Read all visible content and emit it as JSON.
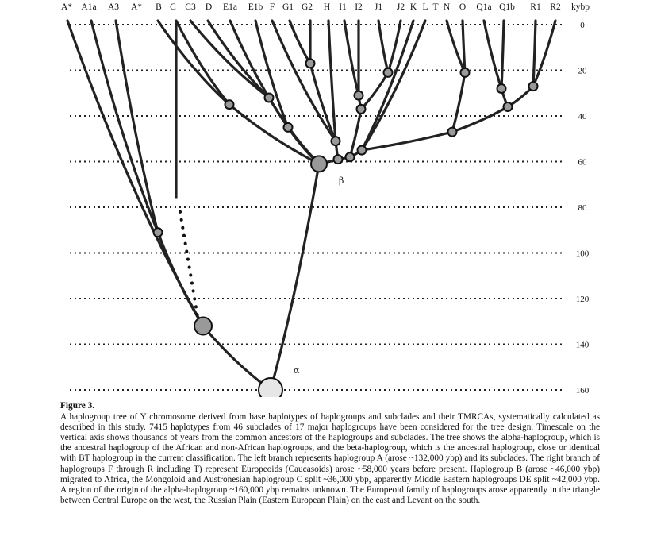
{
  "figure": {
    "axis_unit": "kybp",
    "time_ticks": [
      0,
      20,
      40,
      60,
      80,
      100,
      120,
      140,
      160
    ],
    "haplogroups": [
      "A*",
      "A1a",
      "A3",
      "A*",
      "B",
      "C",
      "C3",
      "D",
      "E1a",
      "E1b",
      "F",
      "G1",
      "G2",
      "H",
      "I1",
      "I2",
      "J1",
      "J2",
      "K",
      "L",
      "T",
      "N",
      "O",
      "Q1a",
      "Q1b",
      "R1",
      "R2"
    ],
    "alpha_label": "α",
    "beta_label": "β",
    "nodes": [
      {
        "name": "alpha",
        "kybp": 160
      },
      {
        "name": "left-branch",
        "kybp": 132
      },
      {
        "name": "beta",
        "kybp": 60
      }
    ]
  },
  "caption": {
    "title": "Figure 3.",
    "text": "A haplogroup tree of Y chromosome derived from base haplotypes of haplogroups and subclades and their TMRCAs, systematically calculated as described in this study. 7415 haplotypes from 46 subclades of 17 major haplogroups have been considered for the tree design. Timescale on the vertical axis shows thousands of years from the common ancestors of the haplogroups and subclades. The tree shows the alpha-haplogroup, which is the ancestral haplogroup of the African and non-African haplogroups, and the beta-haplogroup, which is the ancestral haplogroup, close or identical with BT haplogroup in the current classification. The left branch represents haplogroup A (arose ~132,000 ybp) and its subclades. The right branch of haplogroups F through R including T) represent Europeoids (Caucasoids) arose ~58,000 years before present. Haplogroup B (arose ~46,000 ybp) migrated to Africa, the Mongoloid and Austronesian haplogroup C split ~36,000 ybp, apparently Middle Eastern haplogroups DE split ~42,000 ybp. A region of the origin of the alpha-haplogroup ~160,000 ybp remains unknown. The Europeoid family of haplogroups arose apparently in the triangle between Central Europe on the west, the Russian Plain (Eastern European Plain) on the east and Levant on the south."
  }
}
